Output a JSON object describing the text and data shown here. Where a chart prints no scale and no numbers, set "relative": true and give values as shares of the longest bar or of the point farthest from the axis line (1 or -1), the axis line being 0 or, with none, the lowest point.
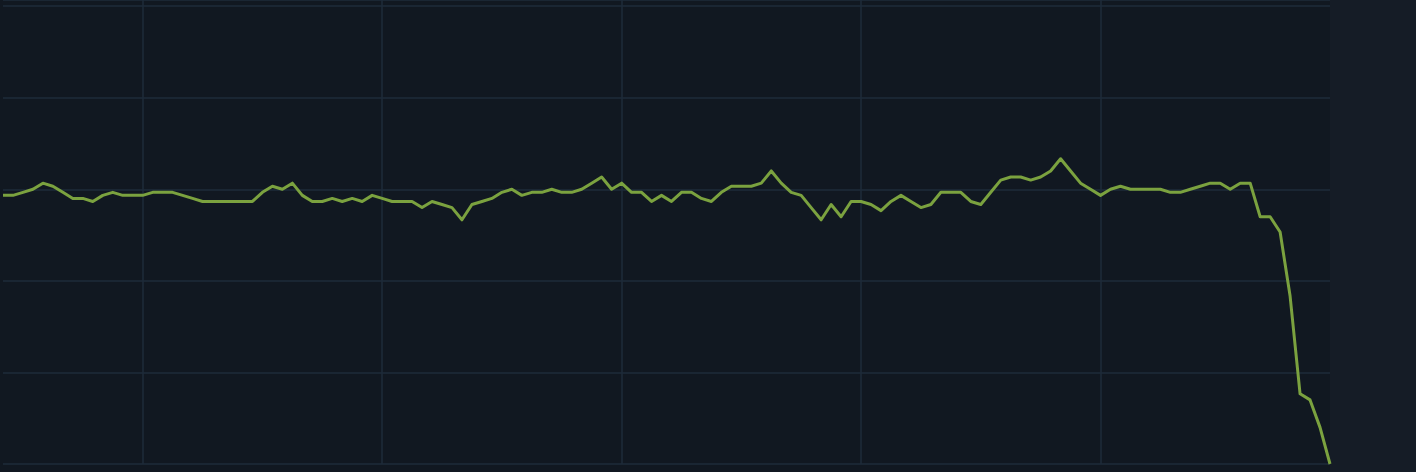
{
  "chart_data": {
    "type": "line",
    "relative": true,
    "grid": true,
    "marker": "none",
    "line_style": "solid",
    "categories": [
      null,
      null,
      null,
      null,
      null,
      null,
      null,
      null,
      null,
      null,
      null,
      null,
      null,
      null,
      null,
      null,
      null,
      null,
      null,
      null,
      null,
      null,
      null,
      null,
      null,
      null,
      null,
      null,
      null,
      null,
      null,
      null,
      null,
      null,
      null,
      null,
      null,
      null,
      null,
      null,
      null,
      null,
      null,
      null,
      null,
      null,
      null,
      null,
      null,
      null,
      null,
      null,
      null,
      null,
      null,
      null,
      null,
      null,
      null,
      null,
      null,
      null,
      null,
      null,
      null,
      null,
      null,
      null,
      null,
      null,
      null,
      null,
      null,
      null,
      null,
      null,
      null,
      null,
      null,
      null,
      null,
      null,
      null,
      null,
      null,
      null,
      null,
      null,
      null,
      null,
      null,
      null,
      null,
      null,
      null,
      null,
      null,
      null,
      null,
      null,
      null,
      null,
      null,
      null,
      null,
      null,
      null,
      null,
      null,
      null,
      null,
      null,
      null,
      null,
      null,
      null,
      null,
      null,
      null,
      null,
      null,
      null,
      null,
      null,
      null,
      null,
      null,
      null,
      null,
      null,
      null,
      null,
      null,
      null
    ],
    "series": [
      {
        "color": "#7ba23f",
        "values": [
          0.88,
          0.88,
          0.89,
          0.9,
          0.92,
          0.91,
          0.89,
          0.87,
          0.87,
          0.86,
          0.88,
          0.89,
          0.88,
          0.88,
          0.88,
          0.89,
          0.89,
          0.89,
          0.88,
          0.87,
          0.86,
          0.86,
          0.86,
          0.86,
          0.86,
          0.86,
          0.89,
          0.91,
          0.9,
          0.92,
          0.88,
          0.86,
          0.86,
          0.87,
          0.86,
          0.87,
          0.86,
          0.88,
          0.87,
          0.86,
          0.86,
          0.86,
          0.84,
          0.86,
          0.85,
          0.84,
          0.8,
          0.85,
          0.86,
          0.87,
          0.89,
          0.9,
          0.88,
          0.89,
          0.89,
          0.9,
          0.89,
          0.89,
          0.9,
          0.92,
          0.94,
          0.9,
          0.92,
          0.89,
          0.89,
          0.86,
          0.88,
          0.86,
          0.89,
          0.89,
          0.87,
          0.86,
          0.89,
          0.91,
          0.91,
          0.91,
          0.92,
          0.96,
          0.92,
          0.89,
          0.88,
          0.84,
          0.8,
          0.85,
          0.81,
          0.86,
          0.86,
          0.85,
          0.83,
          0.86,
          0.88,
          0.86,
          0.84,
          0.85,
          0.89,
          0.89,
          0.89,
          0.86,
          0.85,
          0.89,
          0.93,
          0.94,
          0.94,
          0.93,
          0.94,
          0.96,
          1,
          0.96,
          0.92,
          0.9,
          0.88,
          0.9,
          0.91,
          0.9,
          0.9,
          0.9,
          0.9,
          0.89,
          0.89,
          0.9,
          0.91,
          0.92,
          0.92,
          0.9,
          0.92,
          0.92,
          0.81,
          0.81,
          0.76,
          0.55,
          0.23,
          0.21,
          0.12,
          0
        ]
      }
    ]
  }
}
